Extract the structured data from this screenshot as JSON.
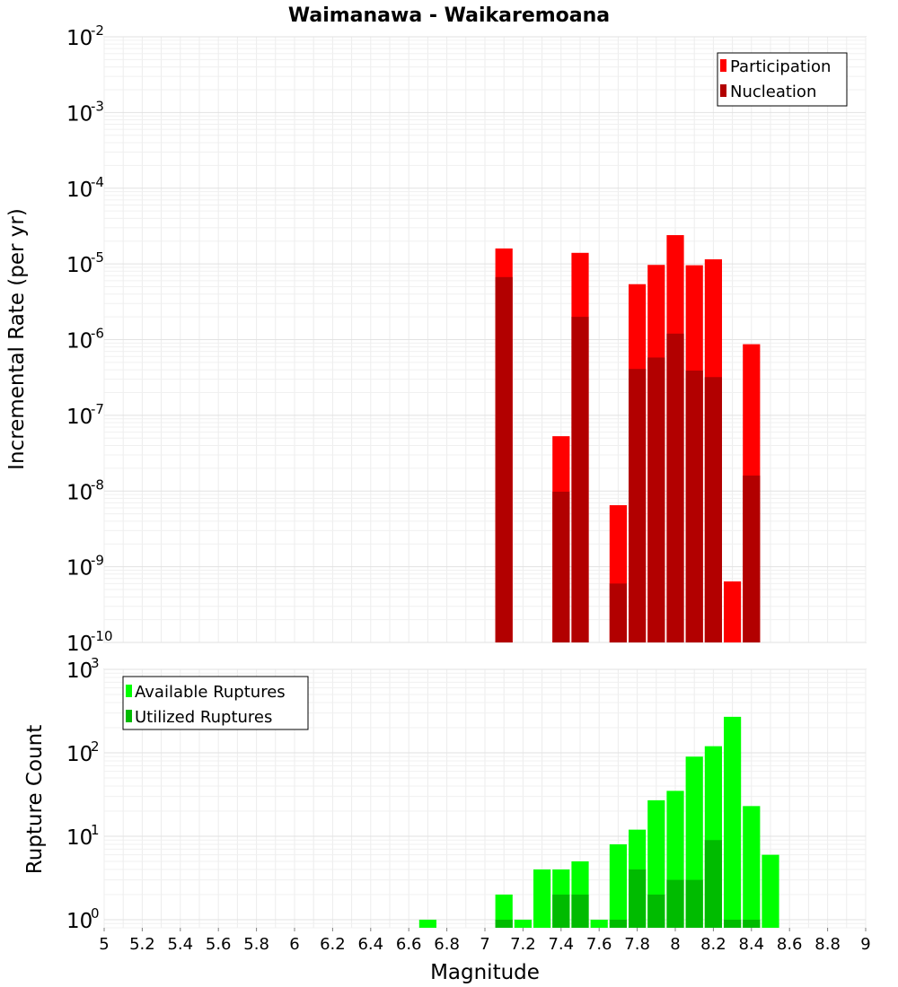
{
  "chart_data": [
    {
      "type": "bar",
      "title": "Waimanawa - Waikaremoana",
      "ylabel": "Incremental Rate (per yr)",
      "xlabel": "",
      "yscale": "log",
      "xlim": [
        5,
        9
      ],
      "ylim": [
        1e-10,
        0.01
      ],
      "grid": true,
      "legend_position": "top-right",
      "x": [
        7.1,
        7.2,
        7.3,
        7.4,
        7.5,
        7.6,
        7.7,
        7.8,
        7.9,
        8.0,
        8.1,
        8.2,
        8.3,
        8.4
      ],
      "series": [
        {
          "name": "Participation",
          "color": "#ff0000",
          "values": [
            1.6e-05,
            0,
            0,
            5.3e-08,
            1.4e-05,
            0,
            6.5e-09,
            5.4e-06,
            9.7e-06,
            2.4e-05,
            9.6e-06,
            1.15e-05,
            6.4e-10,
            8.7e-07
          ]
        },
        {
          "name": "Nucleation",
          "color": "#b20000",
          "values": [
            6.7e-06,
            0,
            0,
            9.8e-09,
            2e-06,
            0,
            6e-10,
            4.1e-07,
            5.8e-07,
            1.2e-06,
            3.9e-07,
            3.2e-07,
            0,
            1.6e-08
          ]
        }
      ]
    },
    {
      "type": "bar",
      "title": "",
      "ylabel": "Rupture Count",
      "xlabel": "Magnitude",
      "yscale": "log",
      "xlim": [
        5,
        9
      ],
      "ylim": [
        0.8,
        1000
      ],
      "grid": true,
      "legend_position": "top-left",
      "x": [
        6.7,
        7.1,
        7.2,
        7.3,
        7.4,
        7.5,
        7.6,
        7.7,
        7.8,
        7.9,
        8.0,
        8.1,
        8.2,
        8.3,
        8.4,
        8.5
      ],
      "series": [
        {
          "name": "Available Ruptures",
          "color": "#00ff00",
          "values": [
            1,
            2,
            1,
            4,
            4,
            5,
            1,
            8,
            12,
            27,
            35,
            90,
            120,
            270,
            23,
            6
          ]
        },
        {
          "name": "Utilized Ruptures",
          "color": "#00bb00",
          "values": [
            0,
            1,
            0,
            0,
            2,
            2,
            0,
            1,
            4,
            2,
            3,
            3,
            9,
            1,
            1,
            0
          ]
        }
      ]
    }
  ],
  "x_ticks": [
    "5",
    "5.2",
    "5.4",
    "5.6",
    "5.8",
    "6",
    "6.2",
    "6.4",
    "6.6",
    "6.8",
    "7",
    "7.2",
    "7.4",
    "7.6",
    "7.8",
    "8",
    "8.2",
    "8.4",
    "8.6",
    "8.8",
    "9"
  ],
  "top_y_ticks": [
    {
      "base": "10",
      "exp": "-2"
    },
    {
      "base": "10",
      "exp": "-3"
    },
    {
      "base": "10",
      "exp": "-4"
    },
    {
      "base": "10",
      "exp": "-5"
    },
    {
      "base": "10",
      "exp": "-6"
    },
    {
      "base": "10",
      "exp": "-7"
    },
    {
      "base": "10",
      "exp": "-8"
    },
    {
      "base": "10",
      "exp": "-9"
    },
    {
      "base": "10",
      "exp": "-10"
    }
  ],
  "bottom_y_ticks": [
    {
      "base": "10",
      "exp": "3"
    },
    {
      "base": "10",
      "exp": "2"
    },
    {
      "base": "10",
      "exp": "1"
    },
    {
      "base": "10",
      "exp": "0"
    }
  ]
}
